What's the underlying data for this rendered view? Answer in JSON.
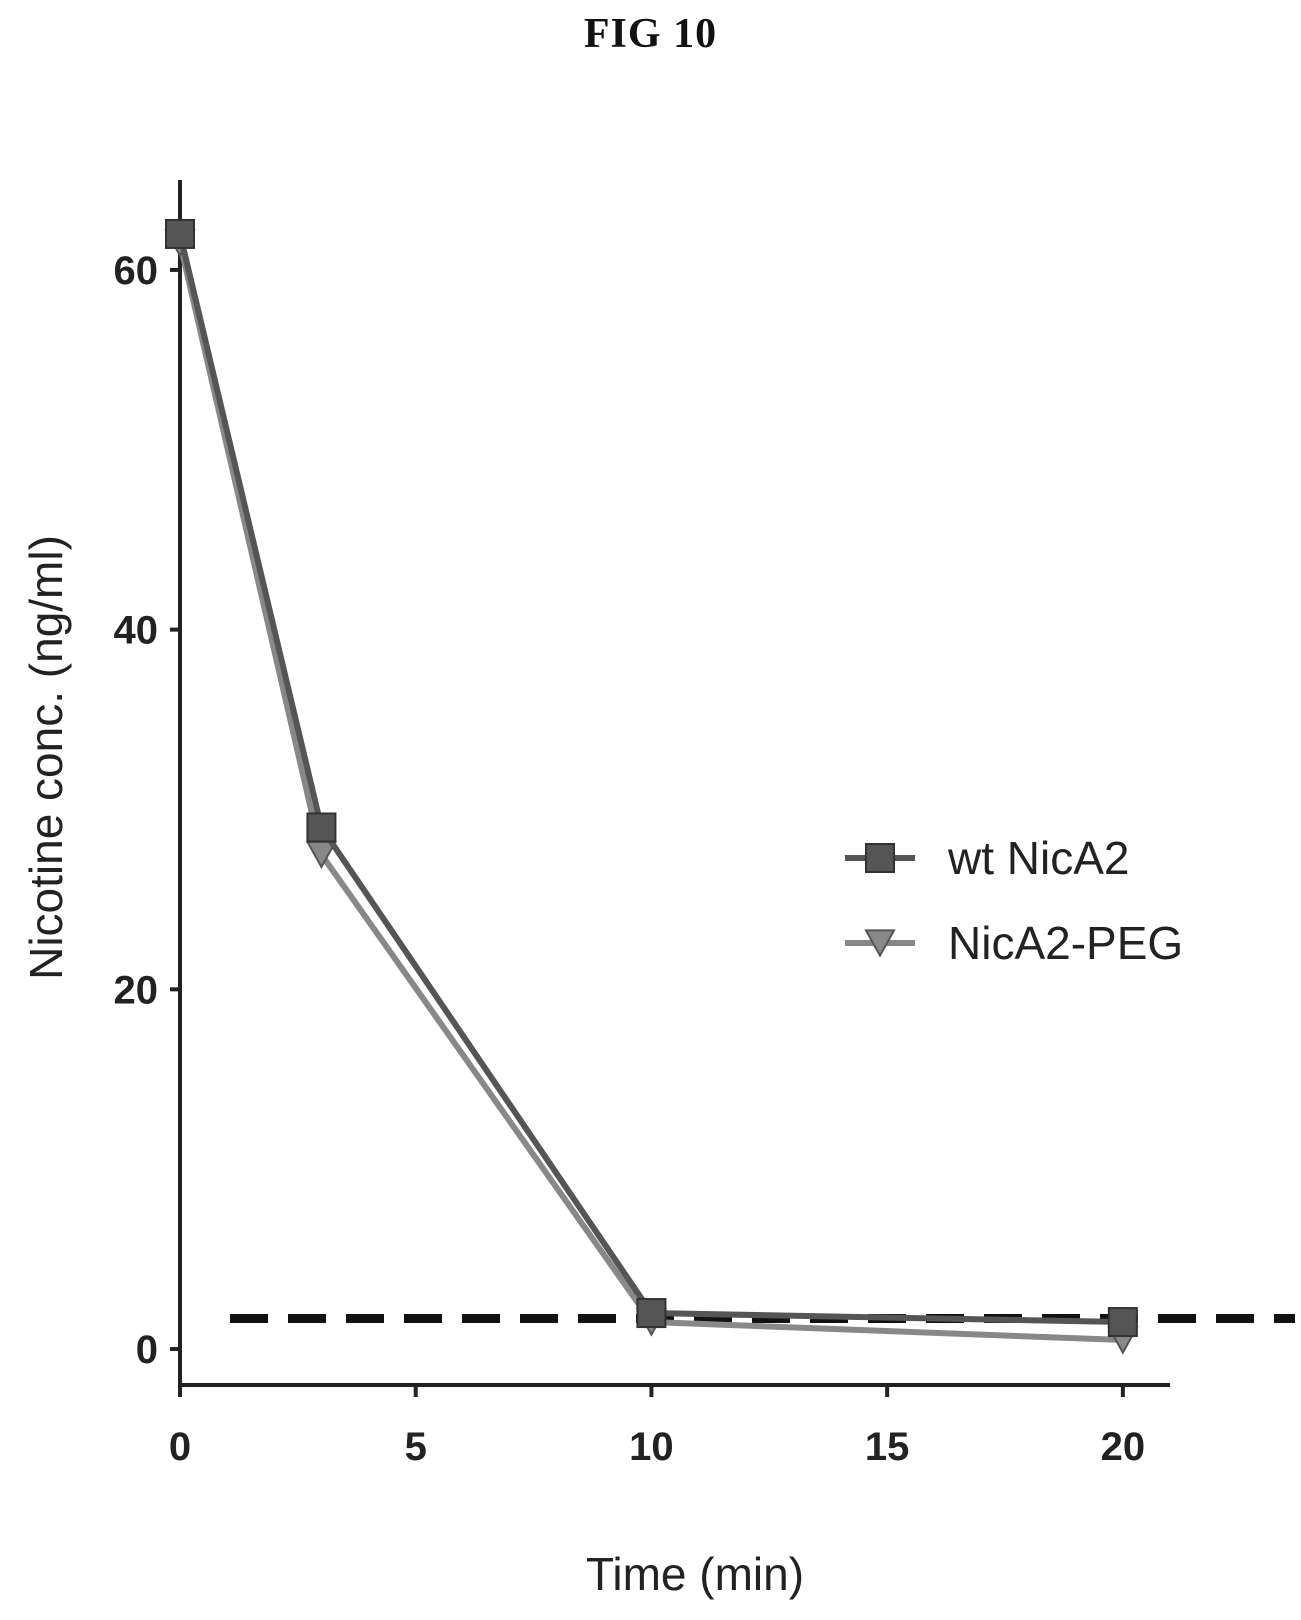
{
  "figure": {
    "title": "FIG 10"
  },
  "chart_data": {
    "type": "line",
    "title": "",
    "xlabel": "Time (min)",
    "ylabel": "Nicotine conc. (ng/ml)",
    "xlim": [
      0,
      21
    ],
    "ylim": [
      -2,
      65
    ],
    "xticks": [
      0,
      5,
      10,
      15,
      20
    ],
    "yticks": [
      0,
      20,
      40,
      60
    ],
    "grid": false,
    "legend_position": "right",
    "reference_line": {
      "y": 1.7,
      "style": "dashed"
    },
    "series": [
      {
        "name": "wt NicA2",
        "marker": "square",
        "color": "#555555",
        "x": [
          0,
          3,
          10,
          20
        ],
        "y": [
          62,
          29,
          2,
          1.5
        ]
      },
      {
        "name": "NicA2-PEG",
        "marker": "triangle-down",
        "color": "#888888",
        "x": [
          0,
          3,
          10,
          20
        ],
        "y": [
          61.5,
          27.5,
          1.5,
          0.5
        ]
      }
    ]
  }
}
